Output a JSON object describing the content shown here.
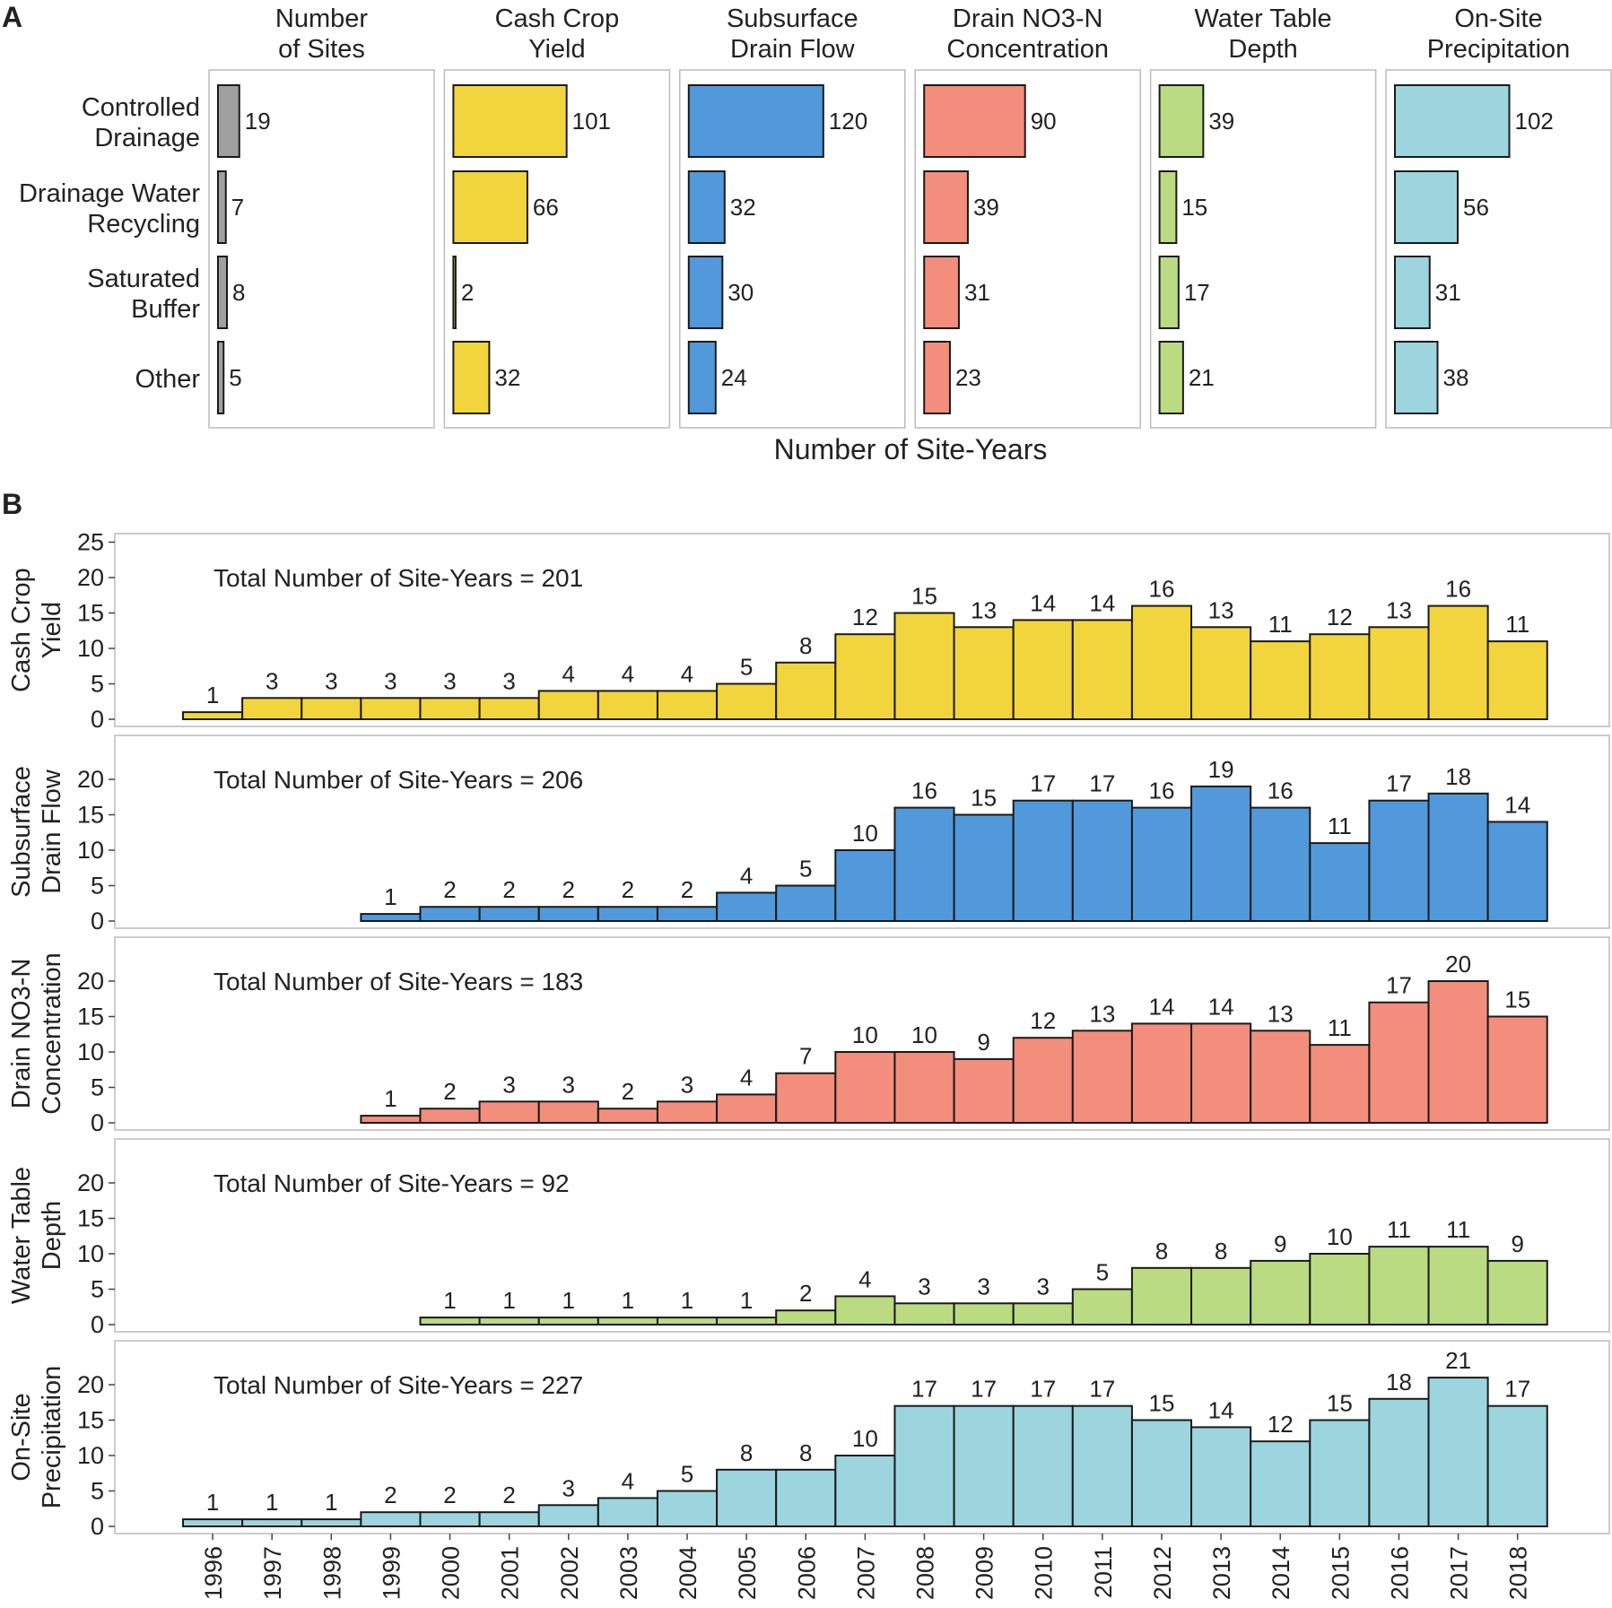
{
  "chart_data": [
    {
      "panel": "A",
      "type": "bar",
      "orientation": "horizontal",
      "xlabel": "Number of Site-Years",
      "categories": [
        "Controlled Drainage",
        "Drainage Water Recycling",
        "Saturated Buffer",
        "Other"
      ],
      "category_lines": [
        [
          "Controlled",
          "Drainage"
        ],
        [
          "Drainage Water",
          "Recycling"
        ],
        [
          "Saturated",
          "Buffer"
        ],
        [
          "Other"
        ]
      ],
      "facets": [
        {
          "title_lines": [
            "Number",
            "of Sites"
          ],
          "color": "#a0a0a0",
          "values": [
            19,
            7,
            8,
            5
          ]
        },
        {
          "title_lines": [
            "Cash Crop",
            "Yield"
          ],
          "color": "#f2d53c",
          "values": [
            101,
            66,
            2,
            32
          ]
        },
        {
          "title_lines": [
            "Subsurface",
            "Drain Flow"
          ],
          "color": "#5199db",
          "values": [
            120,
            32,
            30,
            24
          ]
        },
        {
          "title_lines": [
            "Drain NO3-N",
            "Concentration"
          ],
          "color": "#f28e7b",
          "values": [
            90,
            39,
            31,
            23
          ]
        },
        {
          "title_lines": [
            "Water Table",
            "Depth"
          ],
          "color": "#badb82",
          "values": [
            39,
            15,
            17,
            21
          ]
        },
        {
          "title_lines": [
            "On-Site",
            "Precipitation"
          ],
          "color": "#9dd5df",
          "values": [
            102,
            56,
            31,
            38
          ]
        }
      ]
    },
    {
      "panel": "B",
      "type": "bar",
      "orientation": "vertical",
      "x": [
        "1996",
        "1997",
        "1998",
        "1999",
        "2000",
        "2001",
        "2002",
        "2003",
        "2004",
        "2005",
        "2006",
        "2007",
        "2008",
        "2009",
        "2010",
        "2011",
        "2012",
        "2013",
        "2014",
        "2015",
        "2016",
        "2017",
        "2018"
      ],
      "ylim": [
        0,
        25
      ],
      "yticks": [
        0,
        5,
        10,
        15,
        20,
        25
      ],
      "series": [
        {
          "ylabel_lines": [
            "Cash Crop",
            "Yield"
          ],
          "total_label": "Total Number of Site-Years = 201",
          "color": "#f2d53c",
          "values": [
            1,
            3,
            3,
            3,
            3,
            3,
            4,
            4,
            4,
            5,
            8,
            12,
            15,
            13,
            14,
            14,
            16,
            13,
            11,
            12,
            13,
            16,
            11
          ]
        },
        {
          "ylabel_lines": [
            "Subsurface",
            "Drain Flow"
          ],
          "total_label": "Total Number of Site-Years = 206",
          "color": "#5199db",
          "values": [
            null,
            null,
            null,
            1,
            2,
            2,
            2,
            2,
            2,
            4,
            5,
            10,
            16,
            15,
            17,
            17,
            16,
            19,
            16,
            11,
            17,
            18,
            14
          ]
        },
        {
          "ylabel_lines": [
            "Drain NO3-N",
            "Concentration"
          ],
          "total_label": "Total Number of Site-Years = 183",
          "color": "#f28e7b",
          "values": [
            null,
            null,
            null,
            1,
            2,
            3,
            3,
            2,
            3,
            4,
            7,
            10,
            10,
            9,
            12,
            13,
            14,
            14,
            13,
            11,
            17,
            20,
            15
          ]
        },
        {
          "ylabel_lines": [
            "Water Table",
            "Depth"
          ],
          "total_label": "Total Number of Site-Years = 92",
          "color": "#badb82",
          "values": [
            null,
            null,
            null,
            null,
            1,
            1,
            1,
            1,
            1,
            1,
            2,
            4,
            3,
            3,
            3,
            5,
            8,
            8,
            9,
            10,
            11,
            11,
            9
          ]
        },
        {
          "ylabel_lines": [
            "On-Site",
            "Precipitation"
          ],
          "total_label": "Total Number of Site-Years = 227",
          "color": "#9dd5df",
          "values": [
            1,
            1,
            1,
            2,
            2,
            2,
            3,
            4,
            5,
            8,
            8,
            10,
            17,
            17,
            17,
            17,
            15,
            14,
            12,
            15,
            18,
            21,
            17
          ]
        }
      ]
    }
  ],
  "labels": {
    "panel_a": "A",
    "panel_b": "B"
  }
}
